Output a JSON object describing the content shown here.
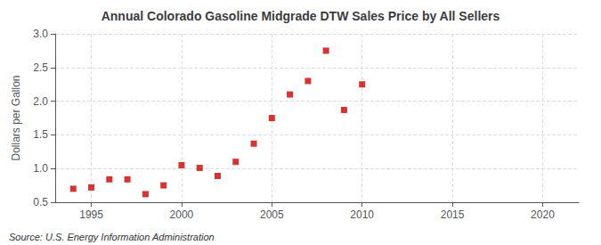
{
  "chart_data": {
    "type": "scatter",
    "title": "Annual Colorado Gasoline Midgrade DTW Sales Price by All Sellers",
    "ylabel": "Dollars per Gallon",
    "annotations": [
      "Source: U.S. Energy Information Administration"
    ],
    "x": [
      1994,
      1995,
      1996,
      1997,
      1998,
      1999,
      2000,
      2001,
      2002,
      2003,
      2004,
      2005,
      2006,
      2007,
      2008,
      2009,
      2010
    ],
    "values": [
      0.7,
      0.72,
      0.84,
      0.84,
      0.62,
      0.75,
      1.05,
      1.01,
      0.89,
      1.1,
      1.37,
      1.75,
      2.1,
      2.3,
      2.75,
      1.87,
      2.25
    ],
    "color": "#cc0000",
    "marker": "square",
    "xlim": [
      1993,
      2022
    ],
    "xticks": [
      1995,
      2000,
      2005,
      2010,
      2015,
      2020
    ],
    "ylim": [
      0.5,
      3.0
    ],
    "yticks": [
      0.5,
      {
        "value": 1.0,
        "label": "1.0"
      },
      1.5,
      {
        "value": 2.0,
        "label": "2.0"
      },
      2.5,
      {
        "value": 3.0,
        "label": "3.0"
      }
    ],
    "grid": true
  }
}
